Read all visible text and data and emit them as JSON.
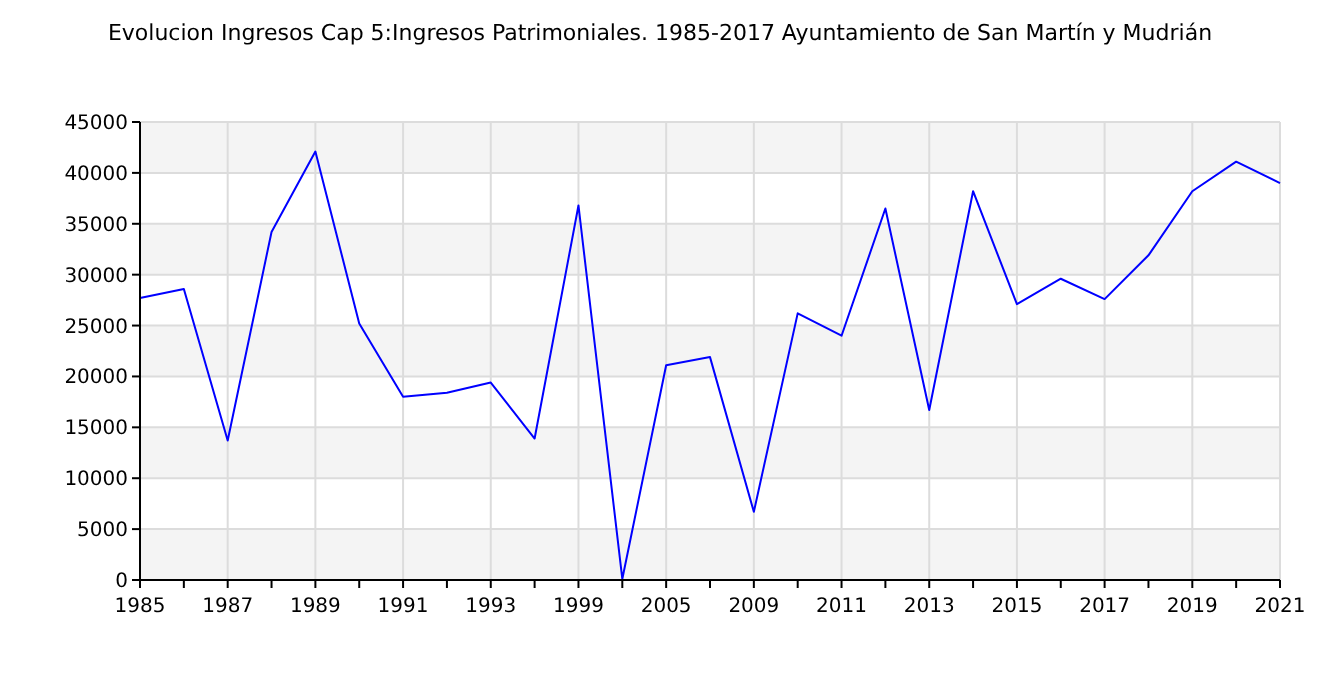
{
  "chart_data": {
    "type": "line",
    "title": "Evolucion Ingresos Cap 5:Ingresos Patrimoniales. 1985-2017 Ayuntamiento de San Martín y Mudrián",
    "categories": [
      "1985",
      null,
      "1987",
      null,
      "1989",
      null,
      "1991",
      null,
      "1993",
      null,
      "1999",
      null,
      "2005",
      null,
      "2009",
      null,
      "2011",
      null,
      "2013",
      null,
      "2015",
      null,
      "2017",
      null,
      "2019",
      null,
      "2021"
    ],
    "series": [
      {
        "color": "#0000ff",
        "values": [
          27700,
          28600,
          13700,
          34200,
          42100,
          25200,
          18000,
          18400,
          19400,
          13900,
          36800,
          100,
          21100,
          21900,
          6700,
          26200,
          24000,
          36500,
          16700,
          38200,
          27100,
          29600,
          27600,
          31900,
          38200,
          41100,
          39000
        ]
      }
    ],
    "ylim": [
      0,
      45000
    ],
    "yticks": [
      0,
      5000,
      10000,
      15000,
      20000,
      25000,
      30000,
      35000,
      40000,
      45000
    ],
    "grid": true
  }
}
